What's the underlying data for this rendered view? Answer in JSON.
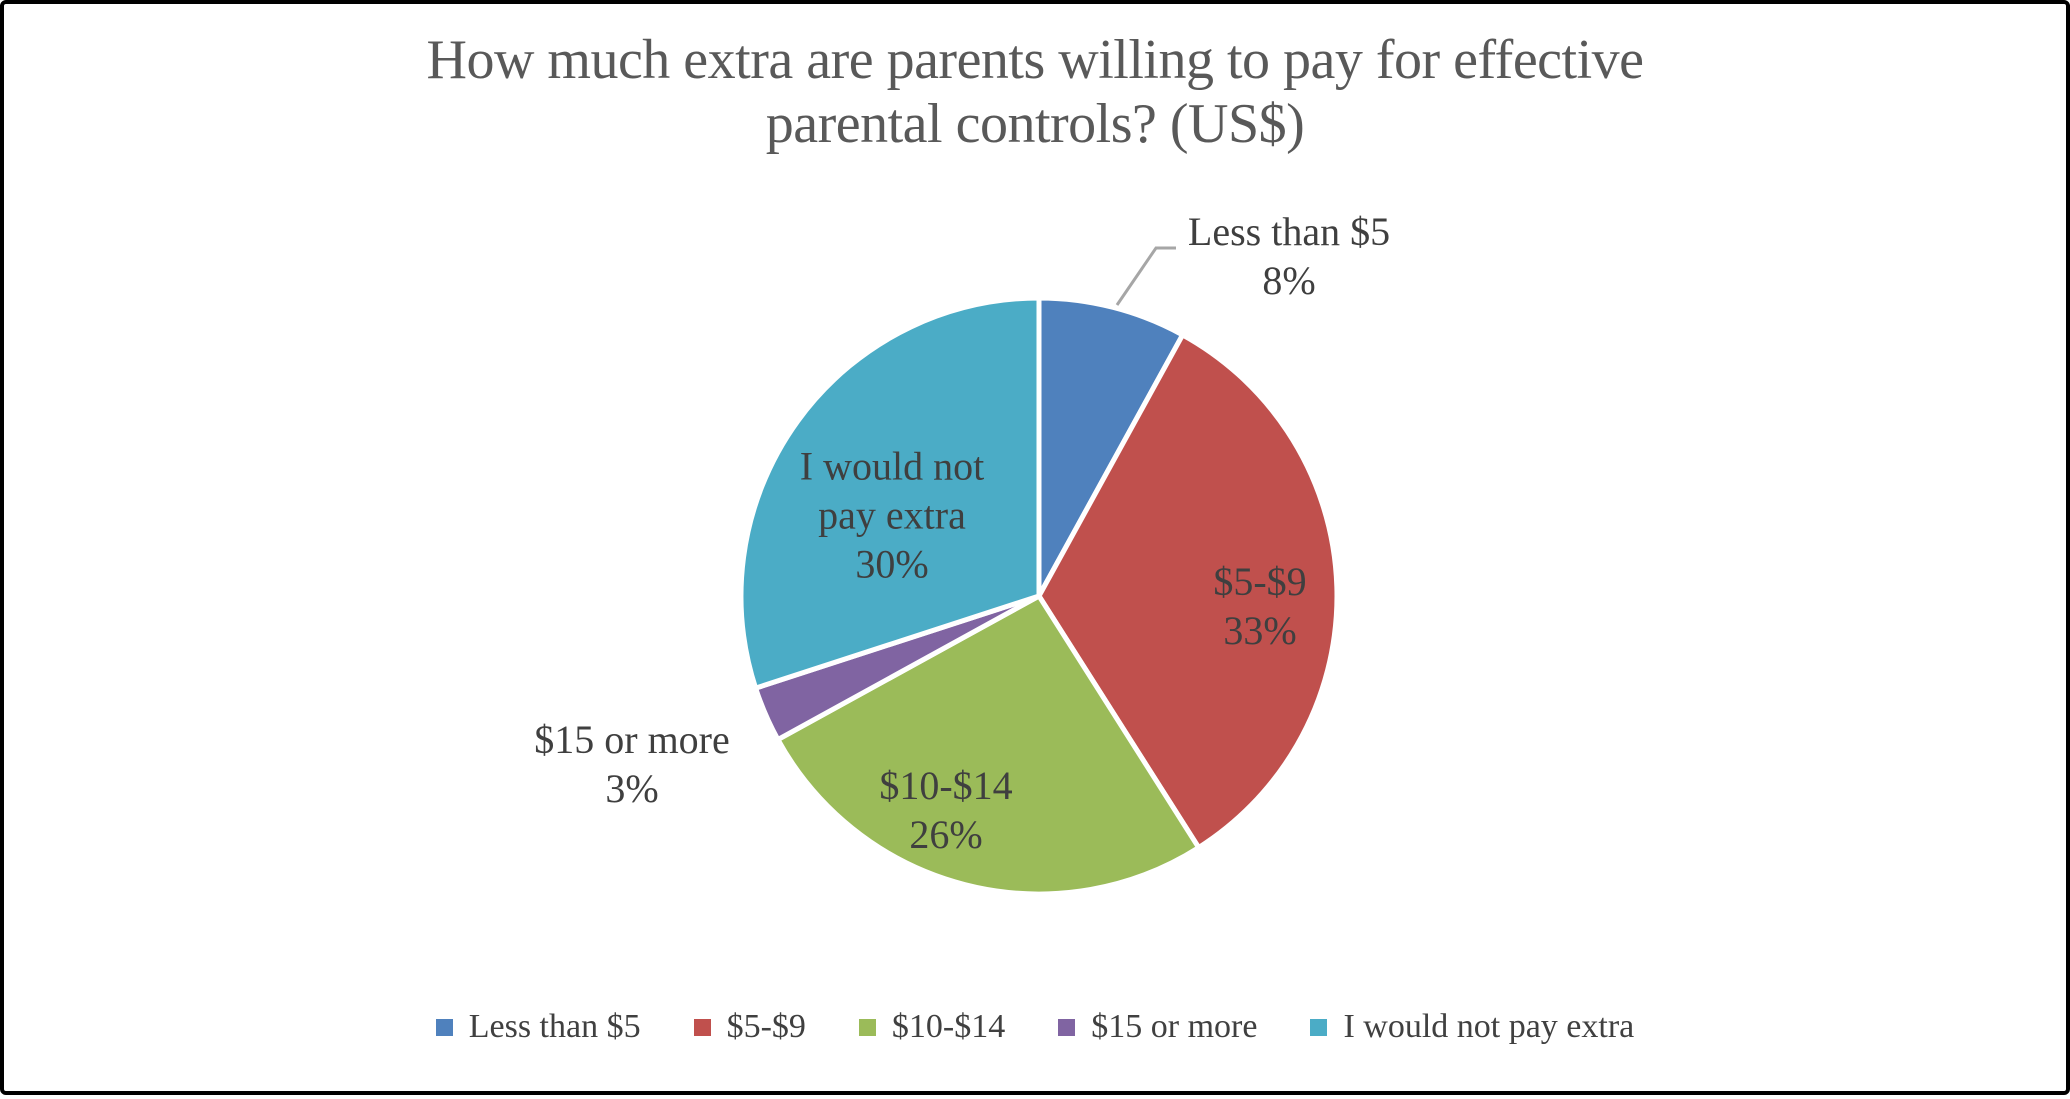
{
  "title_lines": [
    "How much extra are parents willing to pay for effective",
    "parental controls? (US$)"
  ],
  "chart_data": {
    "type": "pie",
    "title": "How much extra are parents willing to pay for effective parental controls? (US$)",
    "categories": [
      "Less than $5",
      "$5-$9",
      "$10-$14",
      "$15 or more",
      "I would not pay extra"
    ],
    "values": [
      8,
      33,
      26,
      3,
      30
    ],
    "label_format": "category_newline_percent",
    "start_angle_deg": 0,
    "direction": "clockwise",
    "legend_position": "bottom",
    "colors": [
      "#4F81BD",
      "#C0504D",
      "#9BBB59",
      "#8064A2",
      "#4BACC6"
    ],
    "slice_border_color": "#FFFFFF",
    "title_color": "#595959",
    "label_color": "#3F3F3F",
    "leader_line_color": "#A6A6A6",
    "frame_border_color": "#000000",
    "background_color": "#FFFFFF"
  }
}
